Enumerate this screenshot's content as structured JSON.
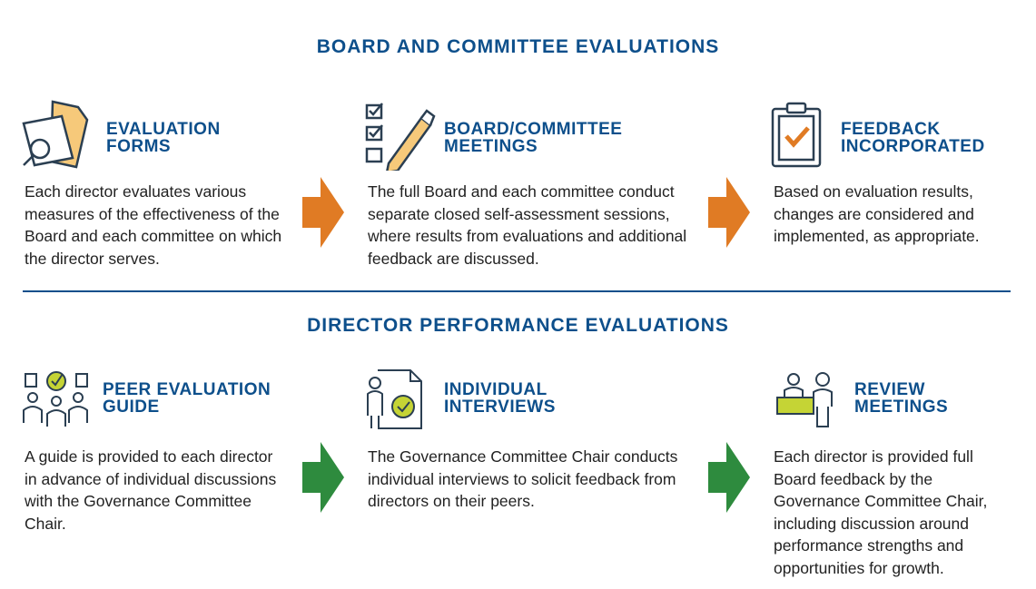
{
  "colors": {
    "title": "#0d4f8b",
    "arrow_top": "#e07b24",
    "arrow_bottom": "#2e8b3e",
    "icon_stroke": "#2b3f52",
    "accent_lime": "#c5d435",
    "accent_peach": "#f6c97a"
  },
  "section1": {
    "title": "BOARD AND COMMITTEE EVALUATIONS",
    "steps": [
      {
        "icon": "evaluation-forms-icon",
        "heading": "EVALUATION\nFORMS",
        "text": "Each director evaluates various measures of the effectiveness of the Board and each committee on which the director serves."
      },
      {
        "icon": "checklist-pen-icon",
        "heading": "BOARD/COMMITTEE\nMEETINGS",
        "text": "The full Board and each committee conduct separate closed self-assessment sessions, where results from evaluations and additional feedback are discussed."
      },
      {
        "icon": "clipboard-check-icon",
        "heading": "FEEDBACK\nINCORPORATED",
        "text": "Based on evaluation results, changes are considered and implemented, as appropriate."
      }
    ]
  },
  "section2": {
    "title": "DIRECTOR PERFORMANCE EVALUATIONS",
    "steps": [
      {
        "icon": "peer-group-icon",
        "heading": "PEER EVALUATION\nGUIDE",
        "text": "A guide is provided to each director in advance of individual discussions with the Governance Committee Chair."
      },
      {
        "icon": "interview-icon",
        "heading": "INDIVIDUAL\nINTERVIEWS",
        "text": "The Governance Committee Chair conducts individual interviews to solicit feedback from directors on their peers."
      },
      {
        "icon": "review-meeting-icon",
        "heading": "REVIEW\nMEETINGS",
        "text": "Each director is provided full Board feedback by the Governance Committee Chair, including discussion around performance strengths and opportunities for growth."
      }
    ]
  }
}
